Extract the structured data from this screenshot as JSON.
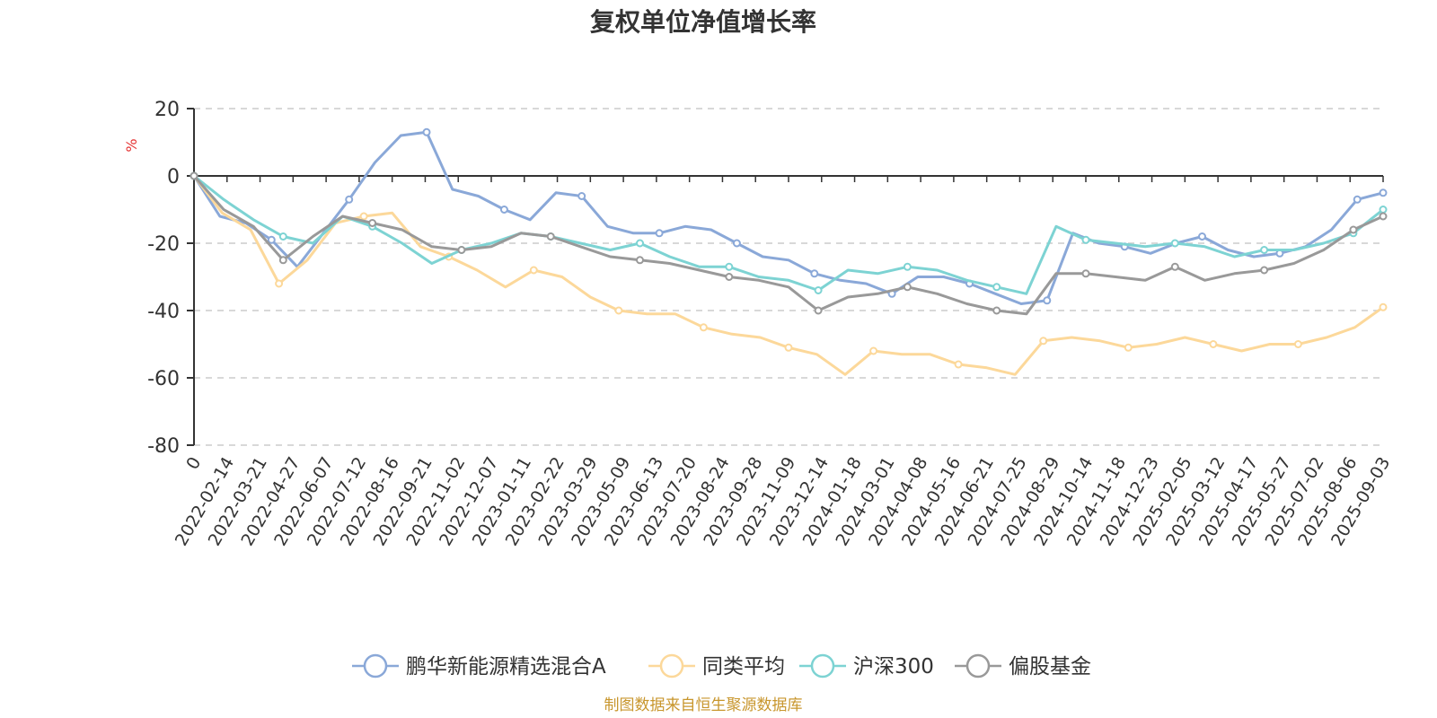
{
  "chart_data": {
    "type": "line",
    "title": "复权单位净值增长率",
    "ylabel": "%",
    "ylim": [
      -80,
      20
    ],
    "yticks": [
      20,
      0,
      -20,
      -40,
      -60,
      -80
    ],
    "grid": true,
    "legend_position": "bottom",
    "source": "制图数据来自恒生聚源数据库",
    "x_tick_labels": [
      "0",
      "2022-02-14",
      "2022-03-21",
      "2022-04-27",
      "2022-06-07",
      "2022-07-12",
      "2022-08-16",
      "2022-09-21",
      "2022-11-02",
      "2022-12-07",
      "2023-01-11",
      "2023-02-22",
      "2023-03-29",
      "2023-05-09",
      "2023-06-13",
      "2023-07-20",
      "2023-08-24",
      "2023-09-28",
      "2023-11-09",
      "2023-12-14",
      "2024-01-18",
      "2024-03-01",
      "2024-04-08",
      "2024-05-16",
      "2024-06-21",
      "2024-07-25",
      "2024-08-29",
      "2024-10-14",
      "2024-11-18",
      "2024-12-23",
      "2025-02-05",
      "2025-03-12",
      "2025-04-17",
      "2025-05-27",
      "2025-07-02",
      "2025-08-06",
      "2025-09-03"
    ],
    "series": [
      {
        "name": "鹏华新能源精选混合A",
        "color": "#8aa8d8",
        "values": [
          0,
          -12,
          -14,
          -19,
          -27,
          -17,
          -7,
          4,
          12,
          13,
          -4,
          -6,
          -10,
          -13,
          -5,
          -6,
          -15,
          -17,
          -17,
          -15,
          -16,
          -20,
          -24,
          -25,
          -29,
          -31,
          -32,
          -35,
          -30,
          -30,
          -32,
          -35,
          -38,
          -37,
          -17,
          -20,
          -21,
          -23,
          -20,
          -18,
          -22,
          -24,
          -23,
          -21,
          -16,
          -7,
          -5
        ]
      },
      {
        "name": "同类平均",
        "color": "#fcd89a",
        "values": [
          0,
          -11,
          -16,
          -32,
          -25,
          -14,
          -12,
          -11,
          -21,
          -24,
          -28,
          -33,
          -28,
          -30,
          -36,
          -40,
          -41,
          -41,
          -45,
          -47,
          -48,
          -51,
          -53,
          -59,
          -52,
          -53,
          -53,
          -56,
          -57,
          -59,
          -49,
          -48,
          -49,
          -51,
          -50,
          -48,
          -50,
          -52,
          -50,
          -50,
          -48,
          -45,
          -39
        ]
      },
      {
        "name": "沪深300",
        "color": "#7dd3d3",
        "values": [
          0,
          -7,
          -13,
          -18,
          -20,
          -12,
          -15,
          -20,
          -26,
          -22,
          -20,
          -17,
          -18,
          -20,
          -22,
          -20,
          -24,
          -27,
          -27,
          -30,
          -31,
          -34,
          -28,
          -29,
          -27,
          -28,
          -31,
          -33,
          -35,
          -15,
          -19,
          -20,
          -21,
          -20,
          -21,
          -24,
          -22,
          -22,
          -20,
          -17,
          -10
        ]
      },
      {
        "name": "偏股基金",
        "color": "#999999",
        "values": [
          0,
          -10,
          -15,
          -25,
          -18,
          -12,
          -14,
          -16,
          -21,
          -22,
          -21,
          -17,
          -18,
          -21,
          -24,
          -25,
          -26,
          -28,
          -30,
          -31,
          -33,
          -40,
          -36,
          -35,
          -33,
          -35,
          -38,
          -40,
          -41,
          -29,
          -29,
          -30,
          -31,
          -27,
          -31,
          -29,
          -28,
          -26,
          -22,
          -16,
          -12
        ]
      }
    ]
  }
}
